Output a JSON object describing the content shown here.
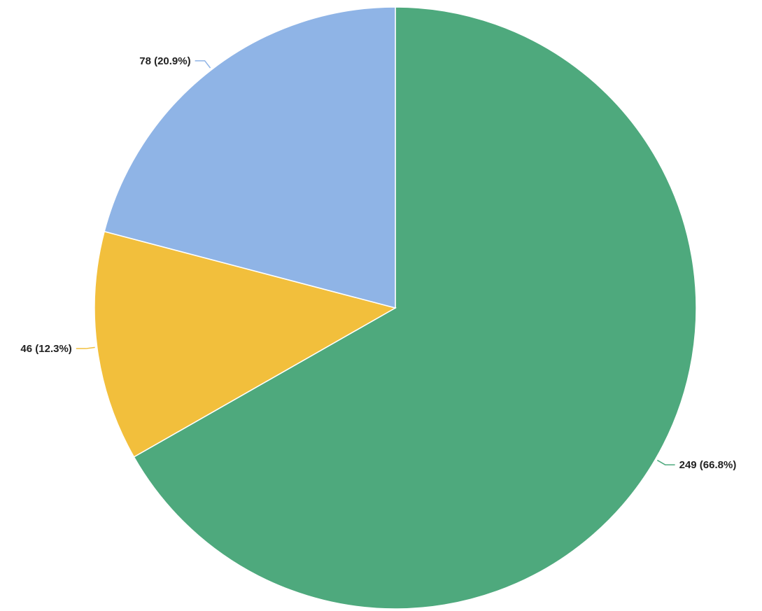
{
  "chart_data": {
    "type": "pie",
    "start_angle_deg": 0,
    "direction": "clockwise",
    "slices": [
      {
        "value": 249,
        "label": "249 (66.8%)",
        "color": "#4ea97d"
      },
      {
        "value": 46,
        "label": "46 (12.3%)",
        "color": "#f2bf3c"
      },
      {
        "value": 78,
        "label": "78 (20.9%)",
        "color": "#8fb4e6"
      }
    ]
  }
}
